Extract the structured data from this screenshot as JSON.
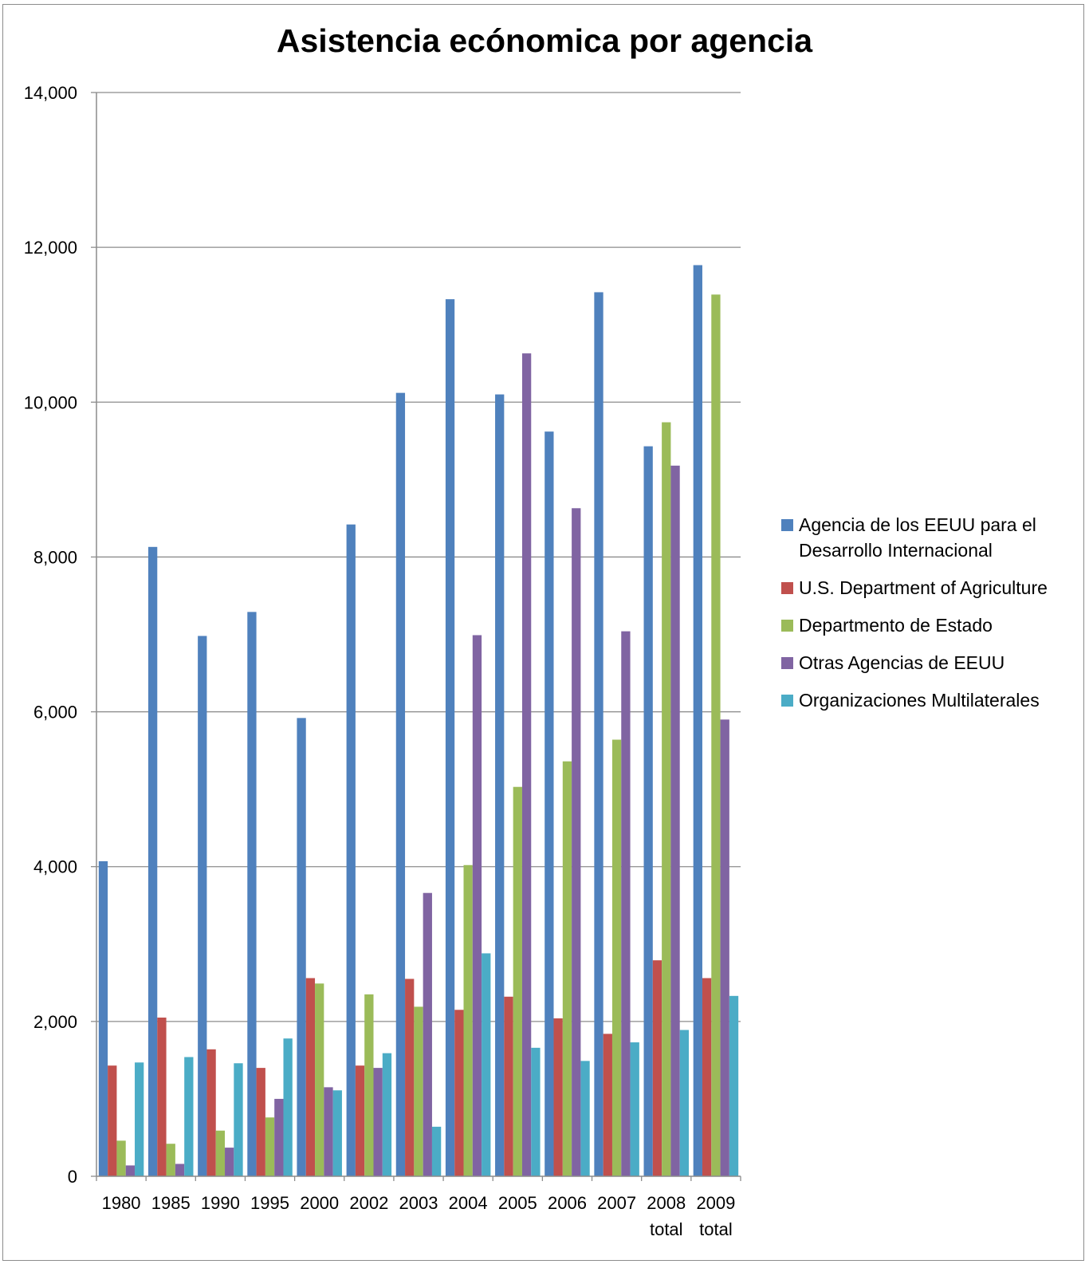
{
  "chart_data": {
    "type": "bar",
    "title": "Asistencia ecónomica por agencia",
    "xlabel": "",
    "ylabel": "",
    "ylim": [
      0,
      14000
    ],
    "yticks": [
      "0",
      "2,000",
      "4,000",
      "6,000",
      "8,000",
      "10,000",
      "12,000",
      "14,000"
    ],
    "grid": true,
    "legend_position": "right",
    "categories": [
      "1980",
      "1985",
      "1990",
      "1995",
      "2000",
      "2002",
      "2003",
      "2004",
      "2005",
      "2006",
      "2007",
      "2008 total",
      "2009 total"
    ],
    "category_lines": [
      [
        "1980"
      ],
      [
        "1985"
      ],
      [
        "1990"
      ],
      [
        "1995"
      ],
      [
        "2000"
      ],
      [
        "2002"
      ],
      [
        "2003"
      ],
      [
        "2004"
      ],
      [
        "2005"
      ],
      [
        "2006"
      ],
      [
        "2007"
      ],
      [
        "2008",
        "total"
      ],
      [
        "2009",
        "total"
      ]
    ],
    "series": [
      {
        "name": "Agencia de los EEUU para el Desarrollo Internacional",
        "name_lines": [
          "Agencia de los EEUU para el",
          "Desarrollo Internacional"
        ],
        "color": "#4f81bd",
        "values": [
          4070,
          8130,
          6980,
          7290,
          5920,
          8420,
          10120,
          11330,
          10100,
          9620,
          11420,
          9430,
          11770
        ]
      },
      {
        "name": "U.S. Department of Agriculture",
        "name_lines": [
          "U.S. Department of Agriculture"
        ],
        "color": "#c0504d",
        "values": [
          1430,
          2050,
          1640,
          1400,
          2560,
          1430,
          2550,
          2150,
          2320,
          2040,
          1840,
          2790,
          2560
        ]
      },
      {
        "name": "Departmento de Estado",
        "name_lines": [
          "Departmento de Estado"
        ],
        "color": "#9bbb59",
        "values": [
          460,
          420,
          590,
          760,
          2490,
          2350,
          2190,
          4020,
          5030,
          5360,
          5640,
          9740,
          11390
        ]
      },
      {
        "name": "Otras Agencias de EEUU",
        "name_lines": [
          "Otras Agencias de EEUU"
        ],
        "color": "#8064a2",
        "values": [
          140,
          160,
          370,
          1000,
          1150,
          1400,
          3660,
          6990,
          10630,
          8630,
          7040,
          9180,
          5900
        ]
      },
      {
        "name": "Organizaciones Multilaterales",
        "name_lines": [
          "Organizaciones Multilaterales"
        ],
        "color": "#4bacc6",
        "values": [
          1470,
          1540,
          1460,
          1780,
          1110,
          1590,
          640,
          2880,
          1660,
          1490,
          1730,
          1890,
          2330
        ]
      }
    ]
  }
}
